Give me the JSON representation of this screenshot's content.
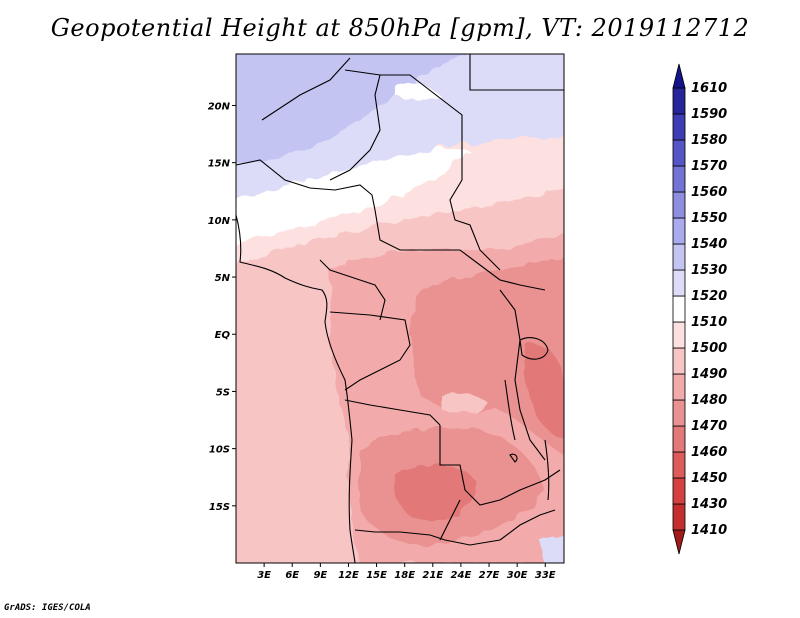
{
  "title": "Geopotential Height at 850hPa [gpm], VT: 2019112712",
  "credit": "GrADS: IGES/COLA",
  "map": {
    "lon_labels": [
      "3E",
      "6E",
      "9E",
      "12E",
      "15E",
      "18E",
      "21E",
      "24E",
      "27E",
      "30E",
      "33E"
    ],
    "lat_labels": [
      "20N",
      "15N",
      "10N",
      "5N",
      "EQ",
      "5S",
      "10S",
      "15S"
    ]
  },
  "chart_data": {
    "type": "heatmap",
    "title": "Geopotential Height at 850hPa [gpm], VT: 2019112712",
    "variable": "Geopotential Height at 850hPa",
    "units": "gpm",
    "valid_time": "2019112712",
    "lon_range": [
      0,
      35
    ],
    "lat_range": [
      -20,
      24.5
    ],
    "colorbar": {
      "labels": [
        1410,
        1430,
        1450,
        1460,
        1470,
        1480,
        1490,
        1500,
        1510,
        1520,
        1530,
        1540,
        1550,
        1560,
        1570,
        1580,
        1590,
        1610
      ],
      "colors": [
        "#a31a1a",
        "#c42e2e",
        "#d54141",
        "#dd5b5b",
        "#e27878",
        "#ea9191",
        "#f2aaaa",
        "#f8c5c5",
        "#fde0e0",
        "#ffffff",
        "#dcdcf8",
        "#c4c4f2",
        "#aaaaee",
        "#8e8ee0",
        "#7373d6",
        "#5555c6",
        "#3c3cb4",
        "#26269a",
        "#14148a"
      ]
    },
    "regions_dominant_values": {
      "sahara_north": 1530,
      "sahel_band": 1510,
      "gulf_of_guinea": 1500,
      "congo_basin": 1490,
      "angola_zambia_low": 1480,
      "east_african_rift": 1480,
      "far_southeast_corner": 1520
    }
  }
}
